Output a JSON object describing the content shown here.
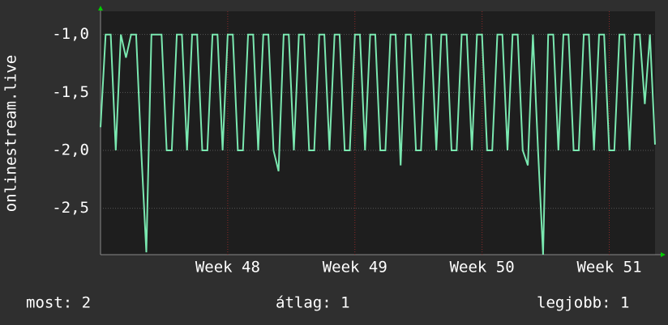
{
  "chart_data": {
    "type": "line",
    "y_label": "onlinestream.live",
    "xlim": [
      47.0,
      51.36
    ],
    "xticks": [
      {
        "value": 48,
        "label": "Week 48"
      },
      {
        "value": 49,
        "label": "Week 49"
      },
      {
        "value": 50,
        "label": "Week 50"
      },
      {
        "value": 51,
        "label": "Week 51"
      }
    ],
    "ylim": [
      -2.9,
      -0.8
    ],
    "yticks": [
      {
        "value": -1.0,
        "label": "-1,0"
      },
      {
        "value": -1.5,
        "label": "-1,5"
      },
      {
        "value": -2.0,
        "label": "-2,0"
      },
      {
        "value": -2.5,
        "label": "-2,5"
      }
    ],
    "grid": true,
    "x": [
      47.0,
      47.04,
      47.08,
      47.12,
      47.16,
      47.2,
      47.24,
      47.28,
      47.32,
      47.36,
      47.4,
      47.44,
      47.48,
      47.52,
      47.56,
      47.6,
      47.64,
      47.68,
      47.72,
      47.76,
      47.8,
      47.84,
      47.88,
      47.92,
      47.96,
      48.0,
      48.04,
      48.08,
      48.12,
      48.16,
      48.2,
      48.24,
      48.28,
      48.32,
      48.36,
      48.4,
      48.44,
      48.48,
      48.52,
      48.56,
      48.6,
      48.64,
      48.68,
      48.72,
      48.76,
      48.8,
      48.84,
      48.88,
      48.92,
      48.96,
      49.0,
      49.04,
      49.08,
      49.12,
      49.16,
      49.2,
      49.24,
      49.28,
      49.32,
      49.36,
      49.4,
      49.44,
      49.48,
      49.52,
      49.56,
      49.6,
      49.64,
      49.68,
      49.72,
      49.76,
      49.8,
      49.84,
      49.88,
      49.92,
      49.96,
      50.0,
      50.04,
      50.08,
      50.12,
      50.16,
      50.2,
      50.24,
      50.28,
      50.32,
      50.36,
      50.4,
      50.44,
      50.48,
      50.52,
      50.56,
      50.6,
      50.64,
      50.68,
      50.72,
      50.76,
      50.8,
      50.84,
      50.88,
      50.92,
      50.96,
      51.0,
      51.04,
      51.08,
      51.12,
      51.16,
      51.2,
      51.24,
      51.28,
      51.32,
      51.36
    ],
    "series": [
      {
        "name": "onlinestream.live",
        "color": "#7ae8b0",
        "values": [
          -1.8,
          -1,
          -1,
          -2,
          -1,
          -1.2,
          -1,
          -1,
          -2,
          -2.88,
          -1,
          -1,
          -1,
          -2,
          -2,
          -1,
          -1,
          -2,
          -1,
          -1,
          -2,
          -2,
          -1,
          -1,
          -2,
          -1,
          -1,
          -2,
          -2,
          -1,
          -1,
          -2,
          -1,
          -1,
          -2,
          -2.18,
          -1,
          -1,
          -2,
          -1,
          -1,
          -2,
          -2,
          -1,
          -1,
          -2,
          -1,
          -1,
          -2,
          -2,
          -1,
          -1,
          -2,
          -1,
          -1,
          -2,
          -2,
          -1,
          -1,
          -2.13,
          -1,
          -1,
          -2,
          -2,
          -1,
          -1,
          -2,
          -1,
          -1,
          -2,
          -2,
          -1,
          -1,
          -2,
          -1,
          -1,
          -2,
          -2,
          -1,
          -1,
          -2,
          -1,
          -1,
          -2,
          -2.13,
          -1,
          -2,
          -2.9,
          -1,
          -1,
          -2,
          -1,
          -1,
          -2,
          -2,
          -1,
          -1,
          -2,
          -1,
          -1,
          -2,
          -2,
          -1,
          -1,
          -2,
          -1,
          -1,
          -1.6,
          -1,
          -1.95
        ]
      }
    ],
    "stats": [
      "most: 2",
      "átlag: 1",
      "legjobb: 1"
    ]
  }
}
